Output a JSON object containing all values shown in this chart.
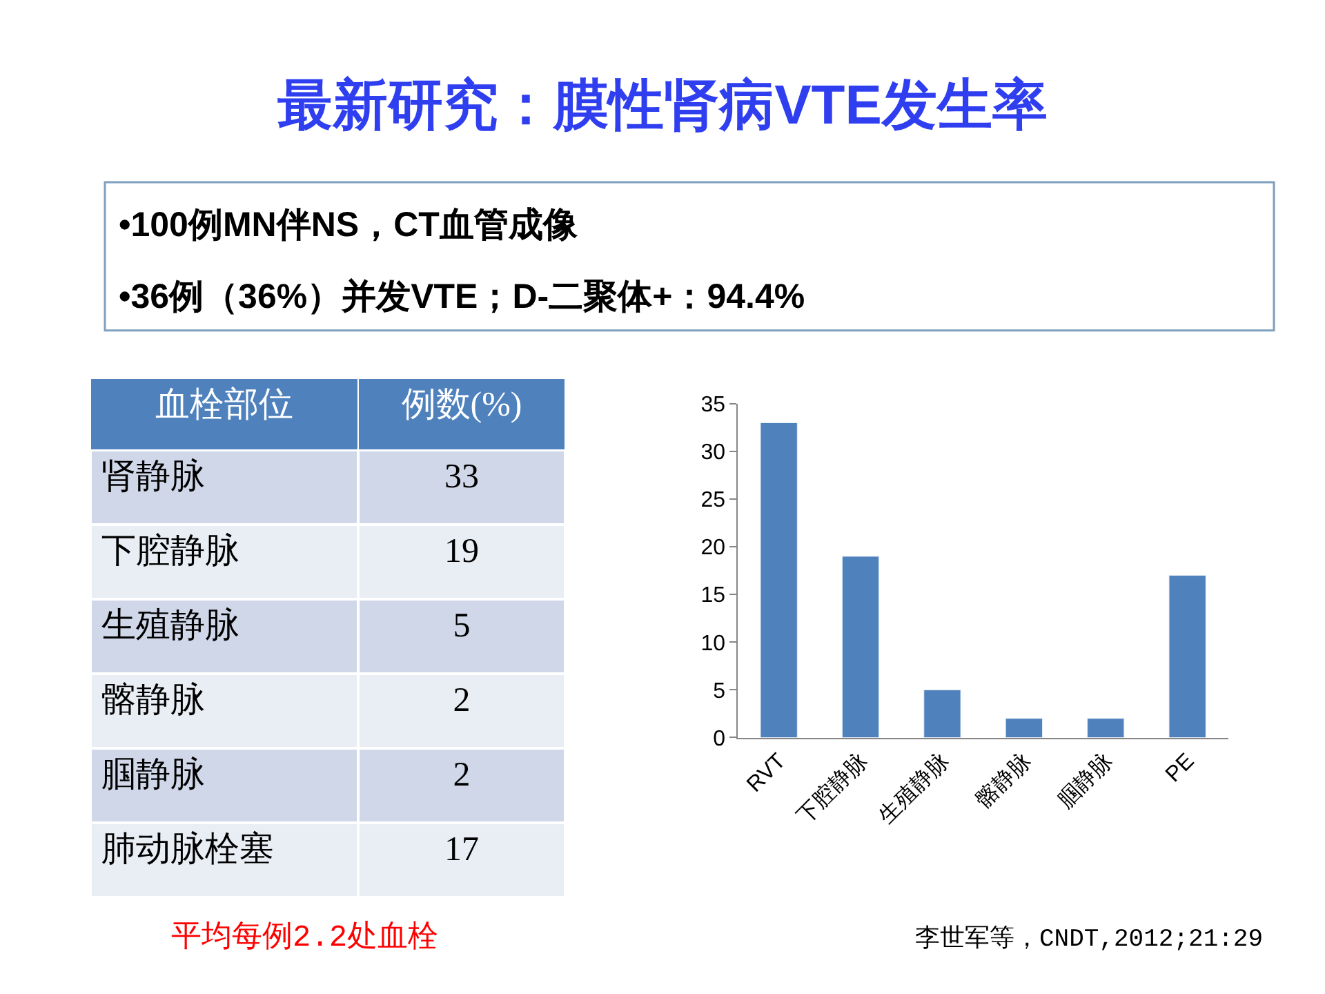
{
  "chart_data": [
    {
      "type": "bar",
      "title": "最新研究：膜性肾病VTE发生率",
      "annotations": [
        "•100例MN伴NS，CT血管成像",
        "•36例（36%）并发VTE；D-二聚体+：94.4%",
        "李世军等，CNDT,2012;21:29"
      ],
      "categories": [
        "RVT",
        "下腔静脉",
        "生殖静脉",
        "髂静脉",
        "腘静脉",
        "PE"
      ],
      "values": [
        33,
        19,
        5,
        2,
        2,
        17
      ],
      "color": "#4f81bd",
      "ylim": [
        0,
        35
      ],
      "yticks": [
        0,
        5,
        10,
        15,
        20,
        25,
        30,
        35
      ]
    },
    {
      "type": "other",
      "annotations": [
        "血栓部位",
        "例数(%)",
        "平均每例2.2处血栓"
      ],
      "categories": [
        "肾静脉",
        "下腔静脉",
        "生殖静脉",
        "髂静脉",
        "腘静脉",
        "肺动脉栓塞"
      ],
      "value_labels": [
        "33",
        "19",
        "5",
        "2",
        "2",
        "17"
      ],
      "colors": [
        "#cfd7e8",
        "#e9edf4",
        "#cfd7e8",
        "#e9edf4",
        "#cfd7e8",
        "#e9edf4"
      ]
    }
  ]
}
